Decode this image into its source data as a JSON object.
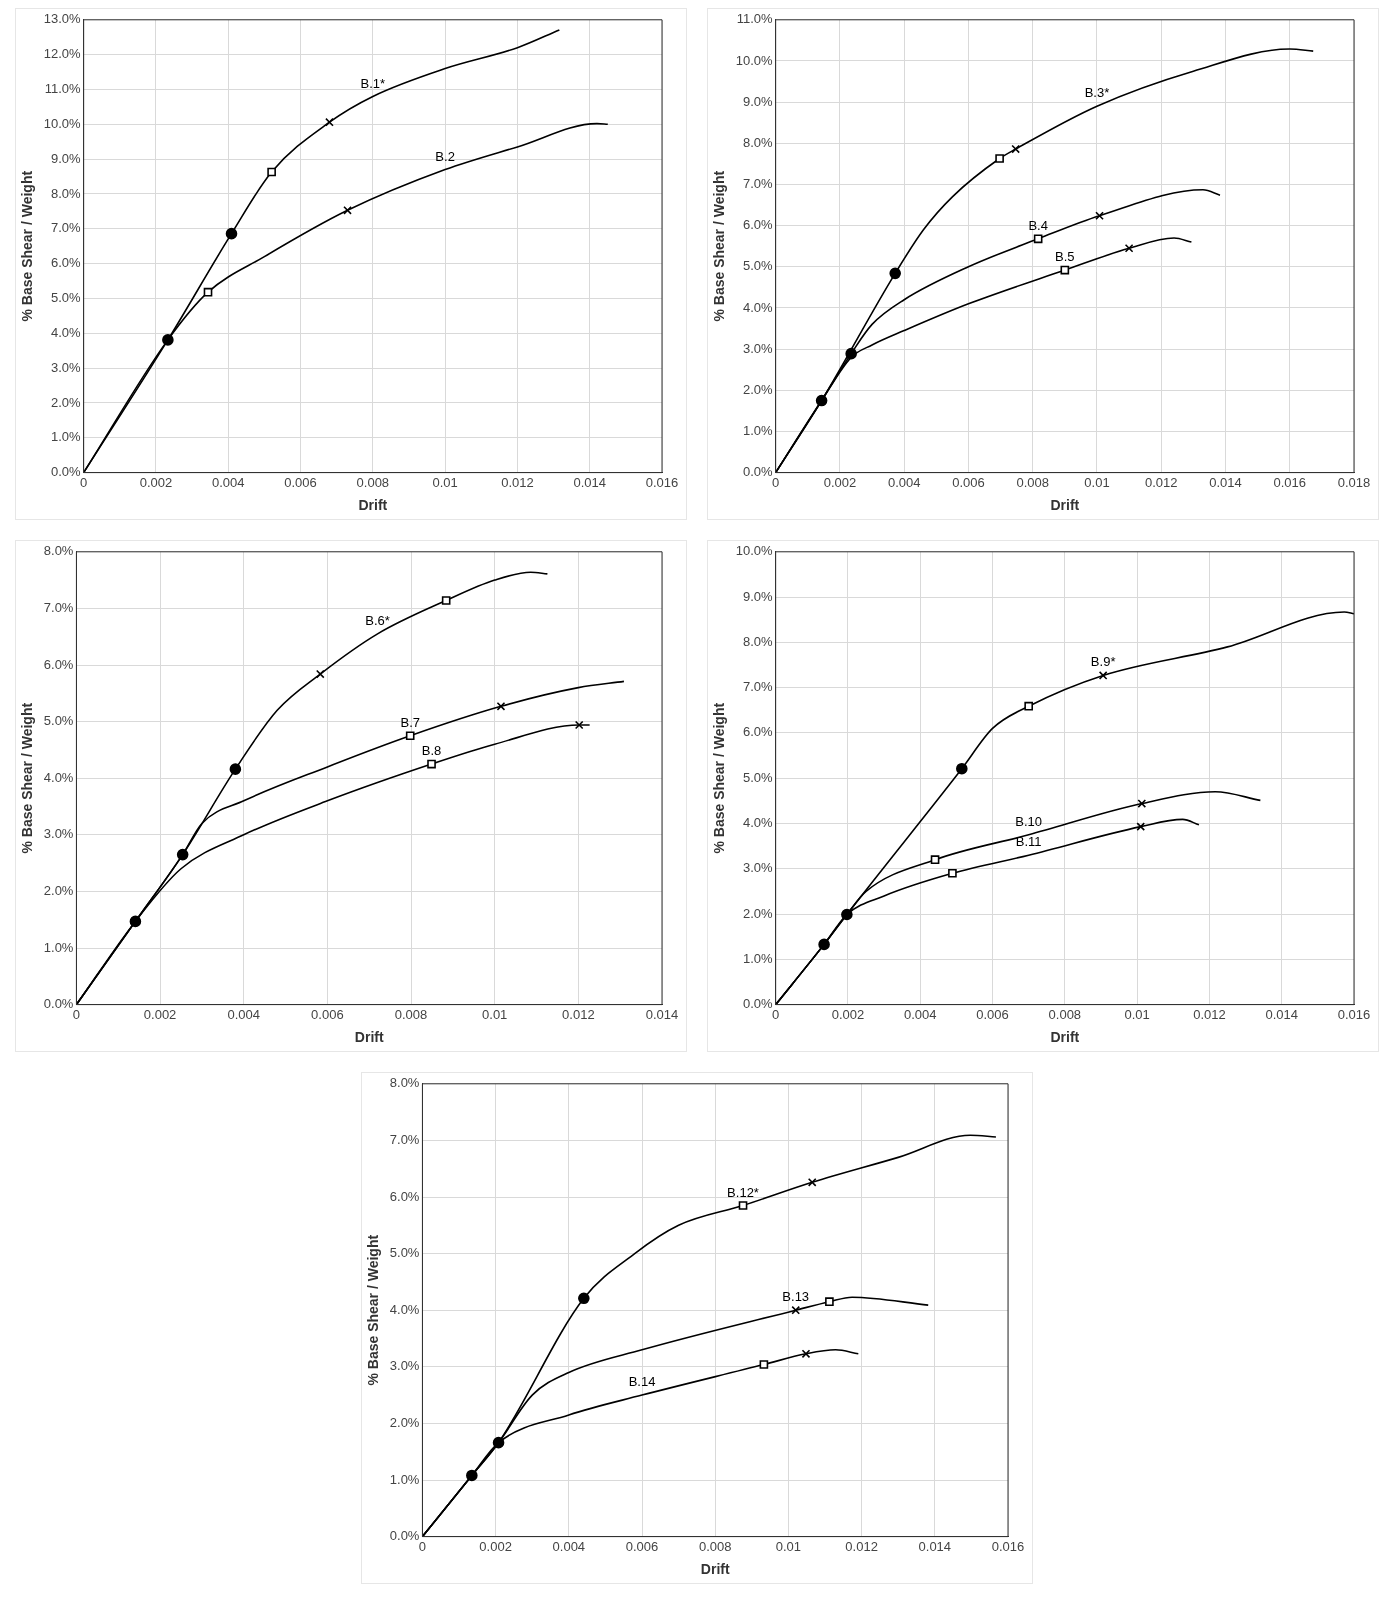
{
  "chart_data": [
    {
      "type": "line",
      "xlabel": "Drift",
      "ylabel": "% Base Shear / Weight",
      "xlim": [
        0,
        0.016
      ],
      "xticks": [
        0,
        0.002,
        0.004,
        0.006,
        0.008,
        0.01,
        0.012,
        0.014,
        0.016
      ],
      "ylim": [
        0,
        13
      ],
      "yticks": [
        {
          "value": 0,
          "label": "0.0%"
        },
        {
          "value": 1,
          "label": "1.0%"
        },
        {
          "value": 2,
          "label": "2.0%"
        },
        {
          "value": 3,
          "label": "3.0%"
        },
        {
          "value": 4,
          "label": "4.0%"
        },
        {
          "value": 5,
          "label": "5.0%"
        },
        {
          "value": 6,
          "label": "6.0%"
        },
        {
          "value": 7,
          "label": "7.0%"
        },
        {
          "value": 8,
          "label": "8.0%"
        },
        {
          "value": 9,
          "label": "9.0%"
        },
        {
          "value": 10,
          "label": "10.0%"
        },
        {
          "value": 11,
          "label": "11.0%"
        },
        {
          "value": 12,
          "label": "12.0%"
        },
        {
          "value": 13,
          "label": "13.0%"
        }
      ],
      "grid": true,
      "legend": false,
      "series": [
        {
          "type": "line",
          "name": "B.1*",
          "marker": "none",
          "color": "#000000",
          "x": [
            0,
            0.00233,
            0.00409,
            0.0052,
            0.0068,
            0.008,
            0.01,
            0.012,
            0.01316
          ],
          "values": [
            0,
            3.81,
            6.86,
            8.63,
            10.06,
            10.8,
            11.6,
            12.2,
            12.71
          ]
        },
        {
          "type": "line",
          "name": "B.2",
          "marker": "none",
          "color": "#000000",
          "x": [
            0,
            0.00233,
            0.00344,
            0.005,
            0.0073,
            0.01,
            0.012,
            0.0142,
            0.0145
          ],
          "values": [
            0,
            3.81,
            5.18,
            6.2,
            7.53,
            8.7,
            9.35,
            10.02,
            10
          ]
        },
        {
          "type": "scatter",
          "marker": "circle",
          "color": "#000000",
          "x": [
            0.00233,
            0.00409
          ],
          "values": [
            3.81,
            6.86
          ]
        },
        {
          "type": "scatter",
          "marker": "square",
          "color": "#000000",
          "x": [
            0.0052,
            0.00344
          ],
          "values": [
            8.63,
            5.18
          ]
        },
        {
          "type": "scatter",
          "marker": "cross",
          "color": "#000000",
          "x": [
            0.0068,
            0.0073
          ],
          "values": [
            10.06,
            7.53
          ]
        }
      ]
    },
    {
      "type": "line",
      "xlabel": "Drift",
      "ylabel": "% Base Shear / Weight",
      "xlim": [
        0,
        0.018
      ],
      "xticks": [
        0,
        0.002,
        0.004,
        0.006,
        0.008,
        0.01,
        0.012,
        0.014,
        0.016,
        0.018
      ],
      "ylim": [
        0,
        11
      ],
      "yticks": [
        {
          "value": 0,
          "label": "0.0%"
        },
        {
          "value": 1,
          "label": "1.0%"
        },
        {
          "value": 2,
          "label": "2.0%"
        },
        {
          "value": 3,
          "label": "3.0%"
        },
        {
          "value": 4,
          "label": "4.0%"
        },
        {
          "value": 5,
          "label": "5.0%"
        },
        {
          "value": 6,
          "label": "6.0%"
        },
        {
          "value": 7,
          "label": "7.0%"
        },
        {
          "value": 8,
          "label": "8.0%"
        },
        {
          "value": 9,
          "label": "9.0%"
        },
        {
          "value": 10,
          "label": "10.0%"
        },
        {
          "value": 11,
          "label": "11.0%"
        }
      ],
      "grid": true,
      "legend": false,
      "series": [
        {
          "type": "line",
          "name": "B.3*",
          "marker": "none",
          "color": "#000000",
          "x": [
            0,
            0.00143,
            0.00372,
            0.0046,
            0.0055,
            0.00697,
            0.00747,
            0.01,
            0.013,
            0.016,
            0.01673
          ],
          "values": [
            0,
            1.75,
            4.84,
            5.9,
            6.7,
            7.63,
            7.86,
            8.9,
            9.75,
            10.29,
            10.24
          ]
        },
        {
          "type": "line",
          "name": "B.4",
          "marker": "none",
          "color": "#000000",
          "x": [
            0,
            0.00143,
            0.00235,
            0.003,
            0.004,
            0.006,
            0.00817,
            0.01008,
            0.0133,
            0.01383
          ],
          "values": [
            0,
            1.75,
            2.89,
            3.6,
            4.2,
            5,
            5.68,
            6.24,
            6.87,
            6.74
          ]
        },
        {
          "type": "line",
          "name": "B.5",
          "marker": "none",
          "color": "#000000",
          "x": [
            0,
            0.00143,
            0.00235,
            0.003,
            0.004,
            0.006,
            0.009,
            0.011,
            0.0124,
            0.01294
          ],
          "values": [
            0,
            1.75,
            2.8,
            3.1,
            3.45,
            4.1,
            4.92,
            5.45,
            5.7,
            5.6
          ]
        },
        {
          "type": "scatter",
          "marker": "circle",
          "color": "#000000",
          "x": [
            0.00143,
            0.00235,
            0.00372
          ],
          "values": [
            1.75,
            2.89,
            4.84
          ]
        },
        {
          "type": "scatter",
          "marker": "square",
          "color": "#000000",
          "x": [
            0.00697,
            0.00817,
            0.009
          ],
          "values": [
            7.63,
            5.68,
            4.92
          ]
        },
        {
          "type": "scatter",
          "marker": "cross",
          "color": "#000000",
          "x": [
            0.00747,
            0.01008,
            0.011
          ],
          "values": [
            7.86,
            6.24,
            5.45
          ]
        }
      ]
    },
    {
      "type": "line",
      "xlabel": "Drift",
      "ylabel": "% Base Shear / Weight",
      "xlim": [
        0,
        0.014
      ],
      "xticks": [
        0,
        0.002,
        0.004,
        0.006,
        0.008,
        0.01,
        0.012,
        0.014
      ],
      "ylim": [
        0,
        8
      ],
      "yticks": [
        {
          "value": 0,
          "label": "0.0%"
        },
        {
          "value": 1,
          "label": "1.0%"
        },
        {
          "value": 2,
          "label": "2.0%"
        },
        {
          "value": 3,
          "label": "3.0%"
        },
        {
          "value": 4,
          "label": "4.0%"
        },
        {
          "value": 5,
          "label": "5.0%"
        },
        {
          "value": 6,
          "label": "6.0%"
        },
        {
          "value": 7,
          "label": "7.0%"
        },
        {
          "value": 8,
          "label": "8.0%"
        }
      ],
      "grid": true,
      "legend": false,
      "series": [
        {
          "type": "line",
          "name": "B.6*",
          "marker": "none",
          "color": "#000000",
          "x": [
            0,
            0.00141,
            0.00254,
            0.0038,
            0.0048,
            0.00583,
            0.0072,
            0.00884,
            0.01,
            0.01086,
            0.01126
          ],
          "values": [
            0,
            1.47,
            2.65,
            4.16,
            5.2,
            5.84,
            6.55,
            7.14,
            7.5,
            7.64,
            7.61
          ]
        },
        {
          "type": "line",
          "name": "B.7",
          "marker": "none",
          "color": "#000000",
          "x": [
            0,
            0.00141,
            0.00254,
            0.003,
            0.004,
            0.006,
            0.00798,
            0.01015,
            0.012,
            0.01309
          ],
          "values": [
            0,
            1.47,
            2.65,
            3.2,
            3.6,
            4.2,
            4.75,
            5.27,
            5.6,
            5.71
          ]
        },
        {
          "type": "line",
          "name": "B.8",
          "marker": "none",
          "color": "#000000",
          "x": [
            0,
            0.00141,
            0.0025,
            0.004,
            0.006,
            0.00849,
            0.01,
            0.01202,
            0.01227
          ],
          "values": [
            0,
            1.47,
            2.4,
            3,
            3.6,
            4.25,
            4.6,
            4.94,
            4.94
          ]
        },
        {
          "type": "scatter",
          "marker": "circle",
          "color": "#000000",
          "x": [
            0.00141,
            0.00254,
            0.0038
          ],
          "values": [
            1.47,
            2.65,
            4.16
          ]
        },
        {
          "type": "scatter",
          "marker": "square",
          "color": "#000000",
          "x": [
            0.00884,
            0.00798,
            0.00849
          ],
          "values": [
            7.14,
            4.75,
            4.25
          ]
        },
        {
          "type": "scatter",
          "marker": "cross",
          "color": "#000000",
          "x": [
            0.00583,
            0.01015,
            0.01202
          ],
          "values": [
            5.84,
            5.27,
            4.94
          ]
        }
      ]
    },
    {
      "type": "line",
      "xlabel": "Drift",
      "ylabel": "% Base Shear / Weight",
      "xlim": [
        0,
        0.016
      ],
      "xticks": [
        0,
        0.002,
        0.004,
        0.006,
        0.008,
        0.01,
        0.012,
        0.014,
        0.016
      ],
      "ylim": [
        0,
        10
      ],
      "yticks": [
        {
          "value": 0,
          "label": "0.0%"
        },
        {
          "value": 1,
          "label": "1.0%"
        },
        {
          "value": 2,
          "label": "2.0%"
        },
        {
          "value": 3,
          "label": "3.0%"
        },
        {
          "value": 4,
          "label": "4.0%"
        },
        {
          "value": 5,
          "label": "5.0%"
        },
        {
          "value": 6,
          "label": "6.0%"
        },
        {
          "value": 7,
          "label": "7.0%"
        },
        {
          "value": 8,
          "label": "8.0%"
        },
        {
          "value": 9,
          "label": "9.0%"
        },
        {
          "value": 10,
          "label": "10.0%"
        }
      ],
      "grid": true,
      "legend": false,
      "series": [
        {
          "type": "line",
          "name": "B.9*",
          "marker": "none",
          "color": "#000000",
          "x": [
            0,
            0.00134,
            0.00197,
            0.00515,
            0.006,
            0.007,
            0.00906,
            0.0125,
            0.01573,
            0.016
          ],
          "values": [
            0,
            1.33,
            1.99,
            5.21,
            6.1,
            6.59,
            7.27,
            7.9,
            8.67,
            8.63
          ]
        },
        {
          "type": "line",
          "name": "B.10",
          "marker": "none",
          "color": "#000000",
          "x": [
            0,
            0.00134,
            0.00197,
            0.0025,
            0.00441,
            0.007,
            0.01013,
            0.01216,
            0.01341
          ],
          "values": [
            0,
            1.33,
            1.99,
            2.5,
            3.2,
            3.75,
            4.44,
            4.7,
            4.51
          ]
        },
        {
          "type": "line",
          "name": "B.11",
          "marker": "none",
          "color": "#000000",
          "x": [
            0,
            0.00134,
            0.00197,
            0.003,
            0.00489,
            0.007,
            0.0101,
            0.01126,
            0.01171
          ],
          "values": [
            0,
            1.33,
            1.99,
            2.4,
            2.9,
            3.3,
            3.93,
            4.09,
            3.97
          ]
        },
        {
          "type": "scatter",
          "marker": "circle",
          "color": "#000000",
          "x": [
            0.00134,
            0.00197,
            0.00515
          ],
          "values": [
            1.33,
            1.99,
            5.21
          ]
        },
        {
          "type": "scatter",
          "marker": "square",
          "color": "#000000",
          "x": [
            0.007,
            0.00441,
            0.00489
          ],
          "values": [
            6.59,
            3.2,
            2.9
          ]
        },
        {
          "type": "scatter",
          "marker": "cross",
          "color": "#000000",
          "x": [
            0.00906,
            0.01013,
            0.0101
          ],
          "values": [
            7.27,
            4.44,
            3.93
          ]
        }
      ]
    },
    {
      "type": "line",
      "xlabel": "Drift",
      "ylabel": "% Base Shear / Weight",
      "xlim": [
        0,
        0.016
      ],
      "xticks": [
        0,
        0.002,
        0.004,
        0.006,
        0.008,
        0.01,
        0.012,
        0.014,
        0.016
      ],
      "ylim": [
        0,
        8
      ],
      "yticks": [
        {
          "value": 0,
          "label": "0.0%"
        },
        {
          "value": 1,
          "label": "1.0%"
        },
        {
          "value": 2,
          "label": "2.0%"
        },
        {
          "value": 3,
          "label": "3.0%"
        },
        {
          "value": 4,
          "label": "4.0%"
        },
        {
          "value": 5,
          "label": "5.0%"
        },
        {
          "value": 6,
          "label": "6.0%"
        },
        {
          "value": 7,
          "label": "7.0%"
        },
        {
          "value": 8,
          "label": "8.0%"
        }
      ],
      "grid": true,
      "legend": false,
      "series": [
        {
          "type": "line",
          "name": "B.12*",
          "marker": "none",
          "color": "#000000",
          "x": [
            0,
            0.00135,
            0.00208,
            0.00441,
            0.0058,
            0.007,
            0.00876,
            0.01065,
            0.013,
            0.01497,
            0.01567
          ],
          "values": [
            0,
            1.08,
            1.66,
            4.21,
            5,
            5.5,
            5.85,
            6.26,
            6.7,
            7.09,
            7.06
          ]
        },
        {
          "type": "line",
          "name": "B.13",
          "marker": "none",
          "color": "#000000",
          "x": [
            0,
            0.00135,
            0.00208,
            0.003,
            0.004,
            0.006,
            0.0102,
            0.01112,
            0.01174,
            0.01382
          ],
          "values": [
            0,
            1.08,
            1.66,
            2.5,
            2.9,
            3.3,
            4,
            4.15,
            4.23,
            4.09
          ]
        },
        {
          "type": "line",
          "name": "B.14",
          "marker": "none",
          "color": "#000000",
          "x": [
            0,
            0.00135,
            0.00208,
            0.004,
            0.006,
            0.00933,
            0.01048,
            0.01129,
            0.01191
          ],
          "values": [
            0,
            1.08,
            1.66,
            2.15,
            2.5,
            3.04,
            3.23,
            3.3,
            3.23
          ]
        },
        {
          "type": "scatter",
          "marker": "circle",
          "color": "#000000",
          "x": [
            0.00135,
            0.00208,
            0.00441
          ],
          "values": [
            1.08,
            1.66,
            4.21
          ]
        },
        {
          "type": "scatter",
          "marker": "square",
          "color": "#000000",
          "x": [
            0.00876,
            0.01112,
            0.00933
          ],
          "values": [
            5.85,
            4.15,
            3.04
          ]
        },
        {
          "type": "scatter",
          "marker": "cross",
          "color": "#000000",
          "x": [
            0.01065,
            0.0102,
            0.01048
          ],
          "values": [
            6.26,
            4,
            3.23
          ]
        }
      ]
    }
  ]
}
